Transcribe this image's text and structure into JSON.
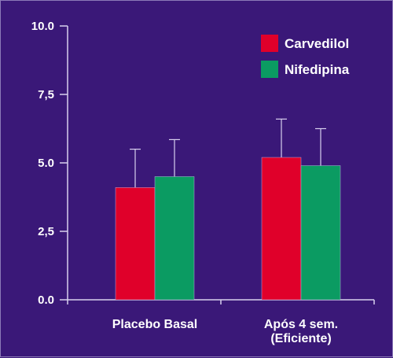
{
  "chart_data": {
    "type": "bar",
    "title": "",
    "xlabel": "",
    "ylabel": "",
    "ylim": [
      0,
      10
    ],
    "yticks": [
      {
        "value": 0,
        "label": "0.0"
      },
      {
        "value": 2.5,
        "label": "2,5"
      },
      {
        "value": 5,
        "label": "5.0"
      },
      {
        "value": 7.5,
        "label": "7,5"
      },
      {
        "value": 10,
        "label": "10.0"
      }
    ],
    "categories": [
      {
        "line1": "Placebo Basal",
        "line2": ""
      },
      {
        "line1": "Após 4 sem.",
        "line2": "(Eficiente)"
      }
    ],
    "series": [
      {
        "name": "Carvedilol",
        "color": "#e0002a",
        "values": [
          4.1,
          5.2
        ],
        "errors": [
          1.4,
          1.4
        ]
      },
      {
        "name": "Nifedipina",
        "color": "#0b9b62",
        "values": [
          4.5,
          4.9
        ],
        "errors": [
          1.35,
          1.35
        ]
      }
    ],
    "grid": false,
    "legend_position": "top-right",
    "colors": {
      "background": "#3a1878",
      "axis": "#d8d0ee",
      "text": "#ffffff",
      "errorbar": "#d8d0ee"
    }
  }
}
